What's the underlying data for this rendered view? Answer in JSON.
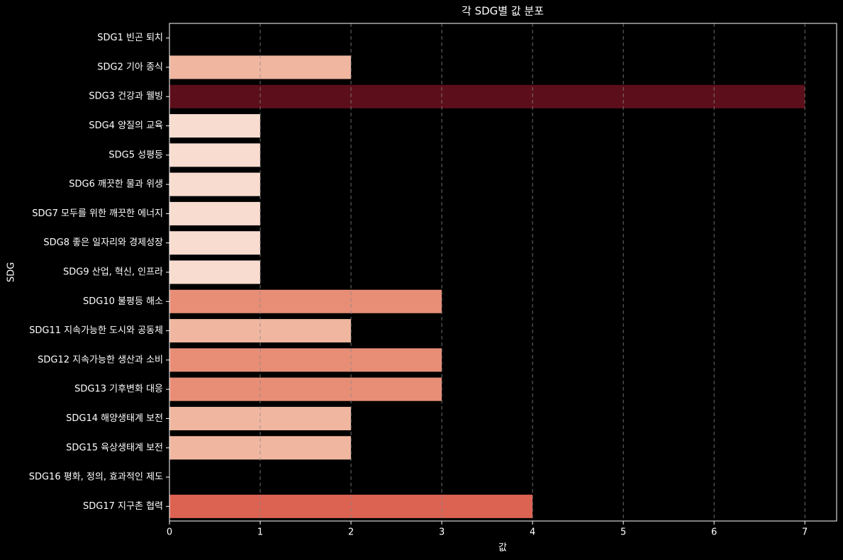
{
  "chart_data": {
    "type": "barh",
    "title": "각 SDG별 값 분포",
    "x_label": "값",
    "y_label": "SDG",
    "categories": [
      "SDG1 빈곤 퇴치",
      "SDG2 기아 종식",
      "SDG3 건강과 웰빙",
      "SDG4 양질의 교육",
      "SDG5 성평등",
      "SDG6 깨끗한 물과 위생",
      "SDG7 모두를 위한 깨끗한 에너지",
      "SDG8 좋은 일자리와 경제성장",
      "SDG9 산업, 혁신, 인프라",
      "SDG10 불평등 해소",
      "SDG11 지속가능한 도시와 공동체",
      "SDG12 지속가능한 생산과 소비",
      "SDG13 기후변화 대응",
      "SDG14 해양생태계 보전",
      "SDG15 육상생태계 보전",
      "SDG16 평화, 정의, 효과적인 제도",
      "SDG17 지구촌 협력"
    ],
    "values": [
      0,
      2,
      7,
      1,
      1,
      1,
      1,
      1,
      1,
      3,
      2,
      3,
      3,
      2,
      2,
      0,
      4
    ],
    "colors": [
      "#fff5f0",
      "#f0b6a0",
      "#5c0f1a",
      "#f8dcd0",
      "#f8dcd0",
      "#f8dcd0",
      "#f8dcd0",
      "#f8dcd0",
      "#f8dcd0",
      "#e88e76",
      "#f0b6a0",
      "#e88e76",
      "#e88e76",
      "#f0b6a0",
      "#f0b6a0",
      "#fff5f0",
      "#dc6252"
    ],
    "xlim": [
      0,
      7.35
    ],
    "xticks": [
      0,
      1,
      2,
      3,
      4,
      5,
      6,
      7
    ],
    "grid": true
  }
}
